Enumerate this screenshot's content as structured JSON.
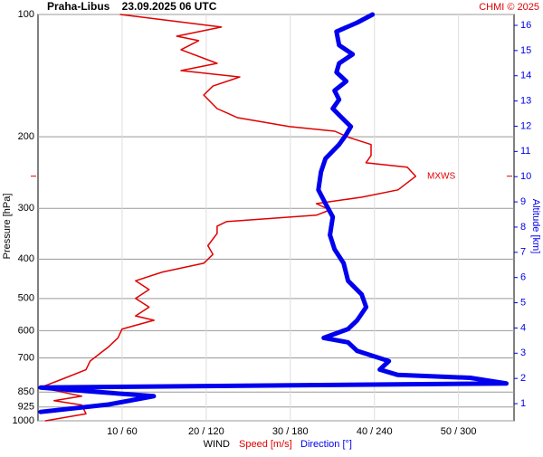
{
  "chart_data": {
    "type": "line",
    "orientation": "horizontal",
    "title": "Praha-Libus    23.09.2025 06 UTC",
    "credit": "CHMI © 2025",
    "ylabel": "Pressure [hPa]",
    "y2label": "Altitude [km]",
    "xlabel": "WIND",
    "xlabel_speed": "Speed [m/s]",
    "xlabel_direction": "Direction [°]",
    "ylog": true,
    "yinverted": true,
    "ylim": [
      1000,
      100
    ],
    "yticks": [
      100,
      200,
      300,
      400,
      500,
      600,
      700,
      850,
      925,
      1000
    ],
    "y2lim": [
      0.32,
      16.43
    ],
    "y2ticks": [
      1,
      2,
      3,
      4,
      5,
      6,
      7,
      8,
      9,
      10,
      11,
      12,
      13,
      14,
      15,
      16
    ],
    "xlim": [
      0,
      56.6
    ],
    "x2lim": [
      0,
      339.6
    ],
    "xticks": [
      {
        "value": 10,
        "label": "10 / 60"
      },
      {
        "value": 20,
        "label": "20 / 120"
      },
      {
        "value": 30,
        "label": "30 / 180"
      },
      {
        "value": 40,
        "label": "40 / 240"
      },
      {
        "value": 50,
        "label": "50 / 300"
      }
    ],
    "grid": true,
    "annotations": [
      {
        "text": "MXWS",
        "y": 250,
        "color": "#e00000"
      }
    ],
    "series": [
      {
        "name": "Speed",
        "color": "#e00000",
        "axis": "x",
        "y": [
          100,
          107.4,
          113.1,
          116.0,
          122.1,
          131.9,
          137.4,
          142.5,
          150.0,
          157.8,
          170.5,
          179.4,
          188.8,
          193.8,
          200.6,
          209.0,
          222.3,
          231.8,
          237.7,
          250.2,
          270.2,
          281.6,
          292.0,
          302.8,
          311.9,
          323.4,
          331.9,
          345.8,
          370.7,
          389.5,
          409.4,
          430.3,
          452.3,
          475.4,
          499.6,
          525.1,
          551.9,
          565.8,
          594.6,
          625.0,
          656.9,
          713,
          749,
          788,
          828,
          870,
          892,
          914,
          961,
          1000
        ],
        "values": [
          9.8,
          21.8,
          16.5,
          19.1,
          17.0,
          21.3,
          17.0,
          24.0,
          20.8,
          19.7,
          21.3,
          23.7,
          29.9,
          35.3,
          36.9,
          39.6,
          39.6,
          39.0,
          43.9,
          44.9,
          42.8,
          38.5,
          33.1,
          34.7,
          33.1,
          22.4,
          21.3,
          21.3,
          20.2,
          20.8,
          19.7,
          14.8,
          11.6,
          13.2,
          11.6,
          13.2,
          11.6,
          13.8,
          10.0,
          9.5,
          8.4,
          6.2,
          5.7,
          3.0,
          0.3,
          5.2,
          1.9,
          5.2,
          5.7,
          0.9
        ]
      },
      {
        "name": "Direction",
        "color": "#0000ee",
        "axis": "x2",
        "y": [
          100,
          104.7,
          110.2,
          119.0,
          125.3,
          131.9,
          138.8,
          146.0,
          153.9,
          162.0,
          170.5,
          179.4,
          188.8,
          198.8,
          209.0,
          226.1,
          244.0,
          270.2,
          292.0,
          314.9,
          348.9,
          378.4,
          409.4,
          452.3,
          488.4,
          525.1,
          565.8,
          594.6,
          625,
          641,
          673,
          713,
          748,
          771,
          784,
          809,
          828,
          850,
          870,
          912,
          951
        ],
        "values": [
          238.7,
          227.7,
          212.9,
          214.8,
          224.5,
          214.8,
          212.9,
          219.9,
          211.6,
          214.8,
          210.3,
          216.7,
          223.2,
          219.3,
          214.8,
          205.1,
          201.9,
          200,
          205.1,
          210.3,
          208.3,
          211.6,
          218.0,
          221.2,
          230.9,
          234.1,
          227.7,
          221.2,
          203.8,
          221.2,
          227.7,
          250.3,
          243.8,
          256.7,
          308.3,
          334.1,
          1.9,
          43.9,
          82.6,
          50.3,
          1.9
        ]
      }
    ]
  }
}
